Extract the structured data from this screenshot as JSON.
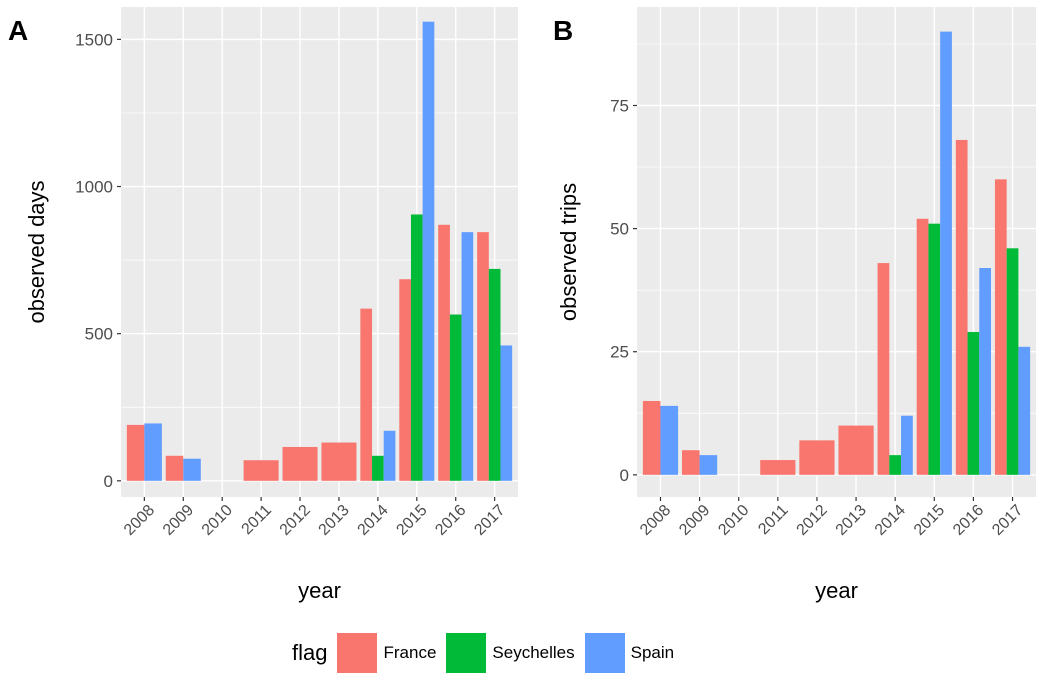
{
  "legend": {
    "title": "flag",
    "items": [
      {
        "name": "France",
        "color": "#F8766D"
      },
      {
        "name": "Seychelles",
        "color": "#00BA38"
      },
      {
        "name": "Spain",
        "color": "#619CFF"
      }
    ]
  },
  "chart_data": [
    {
      "type": "bar",
      "panel_tag": "A",
      "xlabel": "year",
      "ylabel": "observed days",
      "categories": [
        "2008",
        "2009",
        "2010",
        "2011",
        "2012",
        "2013",
        "2014",
        "2015",
        "2016",
        "2017"
      ],
      "ylim": [
        -55,
        1610
      ],
      "yticks": [
        0,
        500,
        1000,
        1500
      ],
      "grid": true,
      "legend_position": "bottom",
      "series": [
        {
          "name": "France",
          "color": "#F8766D",
          "values": [
            190,
            85,
            null,
            70,
            115,
            130,
            585,
            685,
            870,
            845
          ]
        },
        {
          "name": "Seychelles",
          "color": "#00BA38",
          "values": [
            null,
            null,
            null,
            null,
            null,
            null,
            85,
            905,
            565,
            720
          ]
        },
        {
          "name": "Spain",
          "color": "#619CFF",
          "values": [
            195,
            75,
            null,
            null,
            null,
            null,
            170,
            1560,
            845,
            460
          ]
        }
      ]
    },
    {
      "type": "bar",
      "panel_tag": "B",
      "xlabel": "year",
      "ylabel": "observed trips",
      "categories": [
        "2008",
        "2009",
        "2010",
        "2011",
        "2012",
        "2013",
        "2014",
        "2015",
        "2016",
        "2017"
      ],
      "ylim": [
        -4.5,
        95
      ],
      "yticks": [
        0,
        25,
        50,
        75
      ],
      "grid": true,
      "legend_position": "bottom",
      "series": [
        {
          "name": "France",
          "color": "#F8766D",
          "values": [
            15,
            5,
            null,
            3,
            7,
            10,
            43,
            52,
            68,
            60
          ]
        },
        {
          "name": "Seychelles",
          "color": "#00BA38",
          "values": [
            null,
            null,
            null,
            null,
            null,
            null,
            4,
            51,
            29,
            46
          ]
        },
        {
          "name": "Spain",
          "color": "#619CFF",
          "values": [
            14,
            4,
            null,
            null,
            null,
            null,
            12,
            90,
            42,
            26
          ]
        }
      ]
    }
  ]
}
